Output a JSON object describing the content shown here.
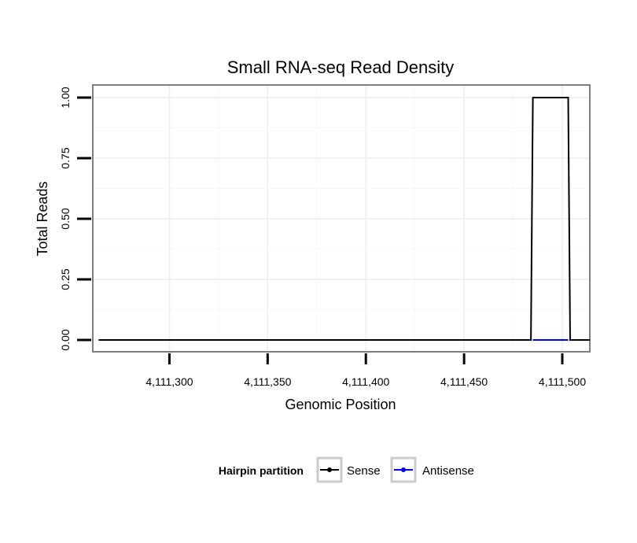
{
  "chart_data": {
    "type": "line",
    "title": "Small RNA-seq Read Density",
    "xlabel": "Genomic Position",
    "ylabel": "Total Reads",
    "xlim": [
      4111261,
      4111514
    ],
    "ylim": [
      0,
      1
    ],
    "x_ticks": [
      4111300,
      4111350,
      4111400,
      4111450,
      4111500
    ],
    "x_tick_labels": [
      "4,111,300",
      "4,111,350",
      "4,111,400",
      "4,111,450",
      "4,111,500"
    ],
    "y_ticks": [
      0,
      0.25,
      0.5,
      0.75,
      1
    ],
    "y_tick_labels": [
      "0.00",
      "0.25",
      "0.50",
      "0.75",
      "1.00"
    ],
    "grid": true,
    "series": [
      {
        "name": "Sense",
        "color": "#000000",
        "x": [
          4111264,
          4111484,
          4111485,
          4111503,
          4111504,
          4111514
        ],
        "y": [
          0,
          0,
          1,
          1,
          0,
          0
        ]
      },
      {
        "name": "Antisense",
        "color": "#0000ff",
        "x": [
          4111485,
          4111503
        ],
        "y": [
          0,
          0
        ]
      }
    ],
    "legend": {
      "title": "Hairpin partition",
      "position": "bottom",
      "entries": [
        "Sense",
        "Antisense"
      ]
    }
  }
}
